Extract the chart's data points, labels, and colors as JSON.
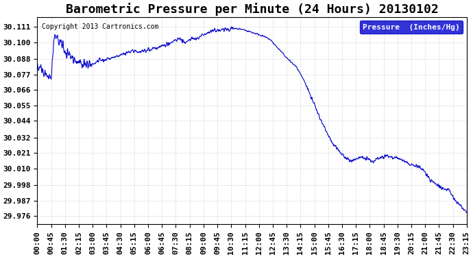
{
  "title": "Barometric Pressure per Minute (24 Hours) 20130102",
  "copyright": "Copyright 2013 Cartronics.com",
  "legend_label": "Pressure  (Inches/Hg)",
  "legend_bg": "#0000cc",
  "legend_text_color": "#ffffff",
  "line_color": "#0000cc",
  "background_color": "#ffffff",
  "grid_color": "#cccccc",
  "yticks": [
    29.976,
    29.987,
    29.998,
    30.01,
    30.021,
    30.032,
    30.044,
    30.055,
    30.066,
    30.077,
    30.088,
    30.1,
    30.111
  ],
  "ylim": [
    29.97,
    30.118
  ],
  "xtick_labels": [
    "00:00",
    "00:45",
    "01:30",
    "02:15",
    "03:00",
    "03:45",
    "04:30",
    "05:15",
    "06:00",
    "06:45",
    "07:30",
    "08:15",
    "09:00",
    "09:45",
    "10:30",
    "11:15",
    "12:00",
    "12:45",
    "13:30",
    "14:15",
    "15:00",
    "15:45",
    "16:30",
    "17:15",
    "18:00",
    "18:45",
    "19:30",
    "20:15",
    "21:00",
    "21:45",
    "22:30",
    "23:15"
  ],
  "title_fontsize": 13,
  "tick_fontsize": 8,
  "ylabel_fontsize": 9
}
